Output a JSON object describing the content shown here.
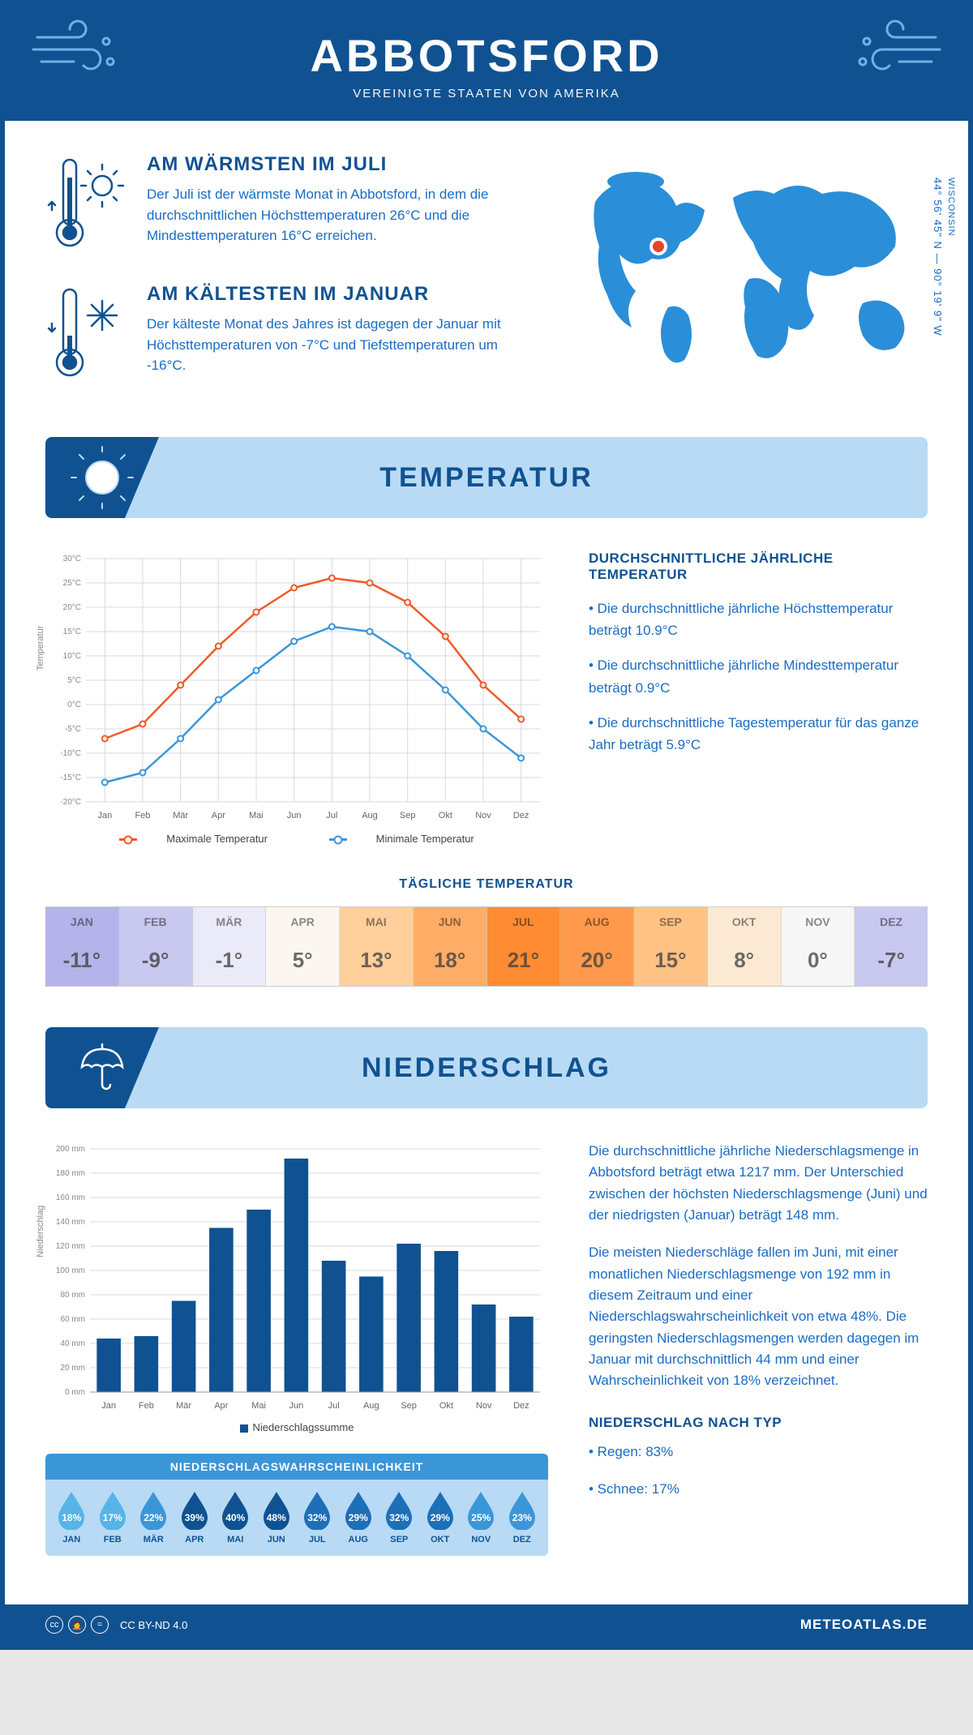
{
  "header": {
    "title": "ABBOTSFORD",
    "subtitle": "VEREINIGTE STAATEN VON AMERIKA"
  },
  "intro": {
    "warm": {
      "title": "AM WÄRMSTEN IM JULI",
      "text": "Der Juli ist der wärmste Monat in Abbotsford, in dem die durchschnittlichen Höchsttemperaturen 26°C und die Mindesttemperaturen 16°C erreichen."
    },
    "cold": {
      "title": "AM KÄLTESTEN IM JANUAR",
      "text": "Der kälteste Monat des Jahres ist dagegen der Januar mit Höchsttemperaturen von -7°C und Tiefsttemperaturen um -16°C."
    },
    "coords": "44° 56' 45\" N — 90° 19' 9\" W",
    "region": "WISCONSIN"
  },
  "temperature": {
    "section_title": "TEMPERATUR",
    "summary_title": "DURCHSCHNITTLICHE JÄHRLICHE TEMPERATUR",
    "bullets": [
      "• Die durchschnittliche jährliche Höchsttemperatur beträgt 10.9°C",
      "• Die durchschnittliche jährliche Mindesttemperatur beträgt 0.9°C",
      "• Die durchschnittliche Tagestemperatur für das ganze Jahr beträgt 5.9°C"
    ],
    "chart": {
      "months": [
        "Jan",
        "Feb",
        "Mär",
        "Apr",
        "Mai",
        "Jun",
        "Jul",
        "Aug",
        "Sep",
        "Okt",
        "Nov",
        "Dez"
      ],
      "max_series": [
        -7,
        -4,
        4,
        12,
        19,
        24,
        26,
        25,
        21,
        14,
        4,
        -3
      ],
      "min_series": [
        -16,
        -14,
        -7,
        1,
        7,
        13,
        16,
        15,
        10,
        3,
        -5,
        -11
      ],
      "max_color": "#f05a28",
      "min_color": "#3b96d8",
      "ymin": -20,
      "ymax": 30,
      "ystep": 5,
      "grid_color": "#d8d8e0",
      "ylabel": "Temperatur",
      "legend_max": "Maximale Temperatur",
      "legend_min": "Minimale Temperatur"
    },
    "daily_title": "TÄGLICHE TEMPERATUR",
    "daily": {
      "months": [
        "JAN",
        "FEB",
        "MÄR",
        "APR",
        "MAI",
        "JUN",
        "JUL",
        "AUG",
        "SEP",
        "OKT",
        "NOV",
        "DEZ"
      ],
      "values": [
        "-11°",
        "-9°",
        "-1°",
        "5°",
        "13°",
        "18°",
        "21°",
        "20°",
        "15°",
        "8°",
        "0°",
        "-7°"
      ],
      "colors": [
        "#b4b4ea",
        "#c8c8f0",
        "#eaeaf8",
        "#fbf6ef",
        "#ffcf9c",
        "#ffad66",
        "#ff8b33",
        "#ff9a4d",
        "#ffc285",
        "#fce9d4",
        "#f6f6f6",
        "#c8c8f0"
      ]
    }
  },
  "precip": {
    "section_title": "NIEDERSCHLAG",
    "text1": "Die durchschnittliche jährliche Niederschlagsmenge in Abbotsford beträgt etwa 1217 mm. Der Unterschied zwischen der höchsten Niederschlagsmenge (Juni) und der niedrigsten (Januar) beträgt 148 mm.",
    "text2": "Die meisten Niederschläge fallen im Juni, mit einer monatlichen Niederschlagsmenge von 192 mm in diesem Zeitraum und einer Niederschlagswahrscheinlichkeit von etwa 48%. Die geringsten Niederschlagsmengen werden dagegen im Januar mit durchschnittlich 44 mm und einer Wahrscheinlichkeit von 18% verzeichnet.",
    "type_title": "NIEDERSCHLAG NACH TYP",
    "type_bullets": [
      "• Regen: 83%",
      "• Schnee: 17%"
    ],
    "chart": {
      "months": [
        "Jan",
        "Feb",
        "Mär",
        "Apr",
        "Mai",
        "Jun",
        "Jul",
        "Aug",
        "Sep",
        "Okt",
        "Nov",
        "Dez"
      ],
      "values": [
        44,
        46,
        75,
        135,
        150,
        192,
        108,
        95,
        122,
        116,
        72,
        62
      ],
      "ymax": 200,
      "ystep": 20,
      "bar_color": "#105291",
      "grid_color": "#d8d8e0",
      "ylabel": "Niederschlag",
      "legend": "Niederschlagssumme"
    },
    "prob": {
      "title": "NIEDERSCHLAGSWAHRSCHEINLICHKEIT",
      "months": [
        "JAN",
        "FEB",
        "MÄR",
        "APR",
        "MAI",
        "JUN",
        "JUL",
        "AUG",
        "SEP",
        "OKT",
        "NOV",
        "DEZ"
      ],
      "values": [
        "18%",
        "17%",
        "22%",
        "39%",
        "40%",
        "48%",
        "32%",
        "29%",
        "32%",
        "29%",
        "25%",
        "23%"
      ],
      "colors": [
        "#56b4e8",
        "#56b4e8",
        "#3b96d8",
        "#105291",
        "#105291",
        "#105291",
        "#1d6fb8",
        "#1d6fb8",
        "#1d6fb8",
        "#1d6fb8",
        "#3b96d8",
        "#3b96d8"
      ]
    }
  },
  "footer": {
    "license": "CC BY-ND 4.0",
    "site": "METEOATLAS.DE"
  },
  "palette": {
    "primary": "#105291",
    "light": "#b8daf4",
    "accent_blue": "#3b96d8"
  }
}
